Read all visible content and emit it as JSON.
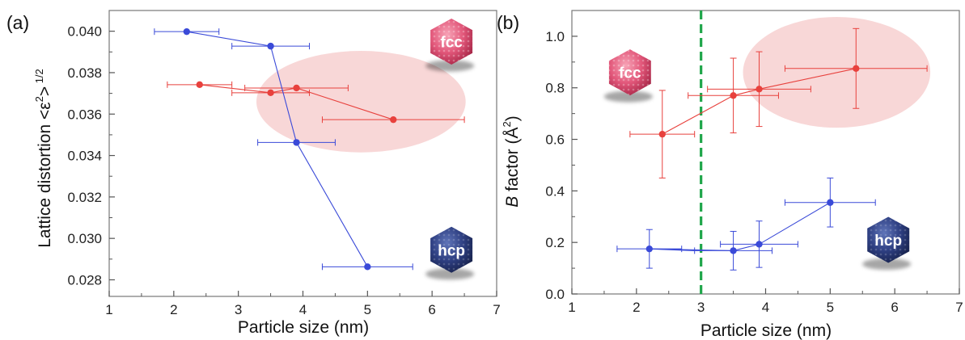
{
  "chart_data": [
    {
      "panel_label": "(a)",
      "type": "scatter",
      "xlabel": "Particle size (nm)",
      "ylabel": "Lattice distortion <ε²>^1/2",
      "ylabel_parts": {
        "main": "Lattice distortion <ε",
        "sup1": "2",
        "mid": ">",
        "sup2": " 1/2"
      },
      "xlim": [
        1,
        7
      ],
      "ylim": [
        0.0272,
        0.041
      ],
      "xticks": [
        1,
        2,
        3,
        4,
        5,
        6,
        7
      ],
      "yticks": [
        0.028,
        0.03,
        0.032,
        0.034,
        0.036,
        0.038,
        0.04
      ],
      "ytick_labels": [
        "0.028",
        "0.030",
        "0.032",
        "0.034",
        "0.036",
        "0.038",
        "0.040"
      ],
      "grid": false,
      "series": [
        {
          "name": "fcc",
          "color": "#e8413d",
          "points": [
            {
              "x": 2.4,
              "y": 0.03742,
              "xerr": 0.5
            },
            {
              "x": 3.5,
              "y": 0.03703,
              "xerr": 0.6
            },
            {
              "x": 3.9,
              "y": 0.03726,
              "xerr": 0.8
            },
            {
              "x": 5.4,
              "y": 0.03573,
              "xerr": 1.1
            }
          ]
        },
        {
          "name": "hcp",
          "color": "#3a4ad8",
          "points": [
            {
              "x": 2.2,
              "y": 0.03998,
              "xerr": 0.5
            },
            {
              "x": 3.5,
              "y": 0.03928,
              "xerr": 0.6
            },
            {
              "x": 3.9,
              "y": 0.03463,
              "xerr": 0.6
            },
            {
              "x": 5.0,
              "y": 0.02863,
              "xerr": 0.7
            }
          ]
        }
      ],
      "annotations": [
        {
          "text": "fcc",
          "x": 6.3,
          "y": 0.0395
        },
        {
          "text": "hcp",
          "x": 6.3,
          "y": 0.02945
        }
      ],
      "shaded_ellipse": {
        "cx": 4.9,
        "cy": 0.0366,
        "rx": 1.62,
        "ry": 0.00245,
        "color": "#f7d0d0"
      }
    },
    {
      "panel_label": "(b)",
      "type": "scatter",
      "xlabel": "Particle size (nm)",
      "ylabel": "B factor (Å²)",
      "ylabel_parts": {
        "italic": "B",
        "main": " factor (Å",
        "sup": "2",
        "end": ")"
      },
      "xlim": [
        1,
        7
      ],
      "ylim": [
        0,
        1.1
      ],
      "xticks": [
        1,
        2,
        3,
        4,
        5,
        6,
        7
      ],
      "yticks": [
        0.0,
        0.2,
        0.4,
        0.6,
        0.8,
        1.0
      ],
      "ytick_labels": [
        "0.0",
        "0.2",
        "0.4",
        "0.6",
        "0.8",
        "1.0"
      ],
      "grid": false,
      "vertical_line": {
        "x": 3.0,
        "color": "#1fa64a",
        "style": "dashed"
      },
      "series": [
        {
          "name": "fcc",
          "color": "#e8413d",
          "points": [
            {
              "x": 2.4,
              "y": 0.62,
              "xerr": 0.5,
              "yerr": 0.17
            },
            {
              "x": 3.5,
              "y": 0.77,
              "xerr": 0.7,
              "yerr": 0.145
            },
            {
              "x": 3.9,
              "y": 0.795,
              "xerr": 0.8,
              "yerr": 0.145
            },
            {
              "x": 5.4,
              "y": 0.875,
              "xerr": 1.1,
              "yerr": 0.155
            }
          ]
        },
        {
          "name": "hcp",
          "color": "#3a4ad8",
          "points": [
            {
              "x": 2.2,
              "y": 0.175,
              "xerr": 0.5,
              "yerr": 0.075
            },
            {
              "x": 3.5,
              "y": 0.168,
              "xerr": 0.6,
              "yerr": 0.075
            },
            {
              "x": 3.9,
              "y": 0.193,
              "xerr": 0.6,
              "yerr": 0.09
            },
            {
              "x": 5.0,
              "y": 0.355,
              "xerr": 0.7,
              "yerr": 0.095
            }
          ]
        }
      ],
      "extra_segments": [
        {
          "color": "#3a4ad8",
          "from": {
            "x": 2.2,
            "y": 0.175
          },
          "to": {
            "x": 2.9,
            "y": 0.168
          }
        }
      ],
      "annotations": [
        {
          "text": "fcc",
          "x": 1.9,
          "y": 0.86
        },
        {
          "text": "hcp",
          "x": 5.9,
          "y": 0.21
        }
      ],
      "shaded_ellipse": {
        "cx": 5.1,
        "cy": 0.86,
        "rx": 1.45,
        "ry": 0.215,
        "color": "#f7d0d0"
      }
    }
  ]
}
